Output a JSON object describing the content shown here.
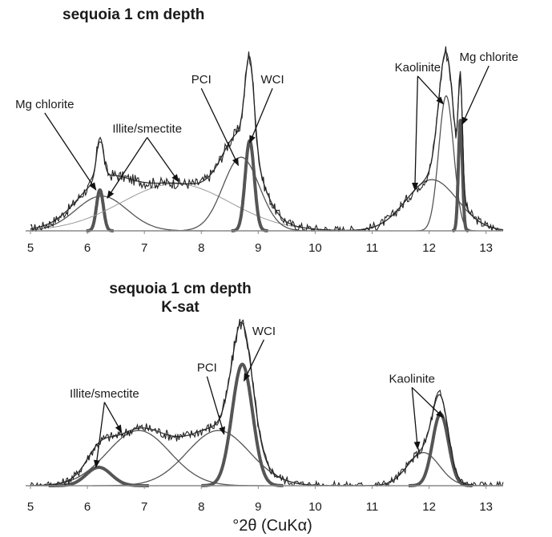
{
  "chart_data": [
    {
      "type": "line",
      "title": "sequoia 1 cm depth",
      "subtitle": "",
      "xlabel": "",
      "ylabel": "",
      "xlim": [
        5,
        13.3
      ],
      "ylim": [
        0,
        1.05
      ],
      "xticks": [
        "5",
        "6",
        "7",
        "8",
        "9",
        "10",
        "11",
        "12",
        "13"
      ],
      "grid": false,
      "legend": "none",
      "annotations": [
        {
          "text": "Mg chlorite",
          "x": 5.25,
          "y": 0.6,
          "points_to": [
            [
              6.15,
              0.2
            ]
          ]
        },
        {
          "text": "Illite/smectite",
          "x": 7.05,
          "y": 0.48,
          "points_to": [
            [
              6.35,
              0.16
            ],
            [
              7.6,
              0.24
            ]
          ]
        },
        {
          "text": "PCI",
          "x": 8.0,
          "y": 0.72,
          "points_to": [
            [
              8.65,
              0.32
            ]
          ]
        },
        {
          "text": "WCI",
          "x": 9.25,
          "y": 0.72,
          "points_to": [
            [
              8.85,
              0.43
            ]
          ]
        },
        {
          "text": "Kaolinite",
          "x": 11.8,
          "y": 0.78,
          "points_to": [
            [
              11.75,
              0.2
            ],
            [
              12.25,
              0.62
            ]
          ]
        },
        {
          "text": "Mg chlorite",
          "x": 13.05,
          "y": 0.83,
          "points_to": [
            [
              12.58,
              0.52
            ]
          ]
        }
      ],
      "peaks": [
        {
          "name": "Mg chlorite",
          "center": 6.22,
          "width": 0.06,
          "height": 0.2,
          "style": "thick"
        },
        {
          "name": "Illite/smectite",
          "center": 6.25,
          "width": 0.45,
          "height": 0.17,
          "style": "thin"
        },
        {
          "name": "Illite/smectite",
          "center": 7.55,
          "width": 0.95,
          "height": 0.23,
          "style": "light"
        },
        {
          "name": "PCI",
          "center": 8.7,
          "width": 0.32,
          "height": 0.36,
          "style": "thin"
        },
        {
          "name": "WCI",
          "center": 8.85,
          "width": 0.08,
          "height": 0.44,
          "style": "thick"
        },
        {
          "name": "Kaolinite",
          "center": 12.05,
          "width": 0.45,
          "height": 0.25,
          "style": "thin"
        },
        {
          "name": "Kaolinite",
          "center": 12.3,
          "width": 0.13,
          "height": 0.66,
          "style": "thin"
        },
        {
          "name": "Mg chlorite",
          "center": 12.55,
          "width": 0.035,
          "height": 0.54,
          "style": "thick"
        }
      ]
    },
    {
      "type": "line",
      "title": "sequoia 1 cm depth",
      "subtitle": "K-sat",
      "xlabel": "°2θ (CuKα)",
      "ylabel": "",
      "xlim": [
        5,
        13.3
      ],
      "ylim": [
        0,
        1.05
      ],
      "xticks": [
        "5",
        "6",
        "7",
        "8",
        "9",
        "10",
        "11",
        "12",
        "13"
      ],
      "grid": false,
      "legend": "none",
      "annotations": [
        {
          "text": "Illite/smectite",
          "x": 6.3,
          "y": 0.48,
          "points_to": [
            [
              6.15,
              0.1
            ],
            [
              6.6,
              0.29
            ]
          ]
        },
        {
          "text": "PCI",
          "x": 8.1,
          "y": 0.62,
          "points_to": [
            [
              8.4,
              0.28
            ]
          ]
        },
        {
          "text": "WCI",
          "x": 9.1,
          "y": 0.82,
          "points_to": [
            [
              8.75,
              0.57
            ]
          ]
        },
        {
          "text": "Kaolinite",
          "x": 11.7,
          "y": 0.56,
          "points_to": [
            [
              11.8,
              0.2
            ],
            [
              12.25,
              0.37
            ]
          ]
        }
      ],
      "peaks": [
        {
          "name": "Illite/smectite",
          "center": 6.2,
          "width": 0.22,
          "height": 0.1,
          "style": "thick"
        },
        {
          "name": "Illite/smectite",
          "center": 6.9,
          "width": 0.55,
          "height": 0.3,
          "style": "thin"
        },
        {
          "name": "PCI",
          "center": 8.3,
          "width": 0.55,
          "height": 0.3,
          "style": "thin"
        },
        {
          "name": "WCI",
          "center": 8.72,
          "width": 0.18,
          "height": 0.66,
          "style": "thick"
        },
        {
          "name": "Kaolinite",
          "center": 11.9,
          "width": 0.28,
          "height": 0.18,
          "style": "thin"
        },
        {
          "name": "Kaolinite",
          "center": 12.2,
          "width": 0.14,
          "height": 0.39,
          "style": "thick"
        }
      ]
    }
  ]
}
